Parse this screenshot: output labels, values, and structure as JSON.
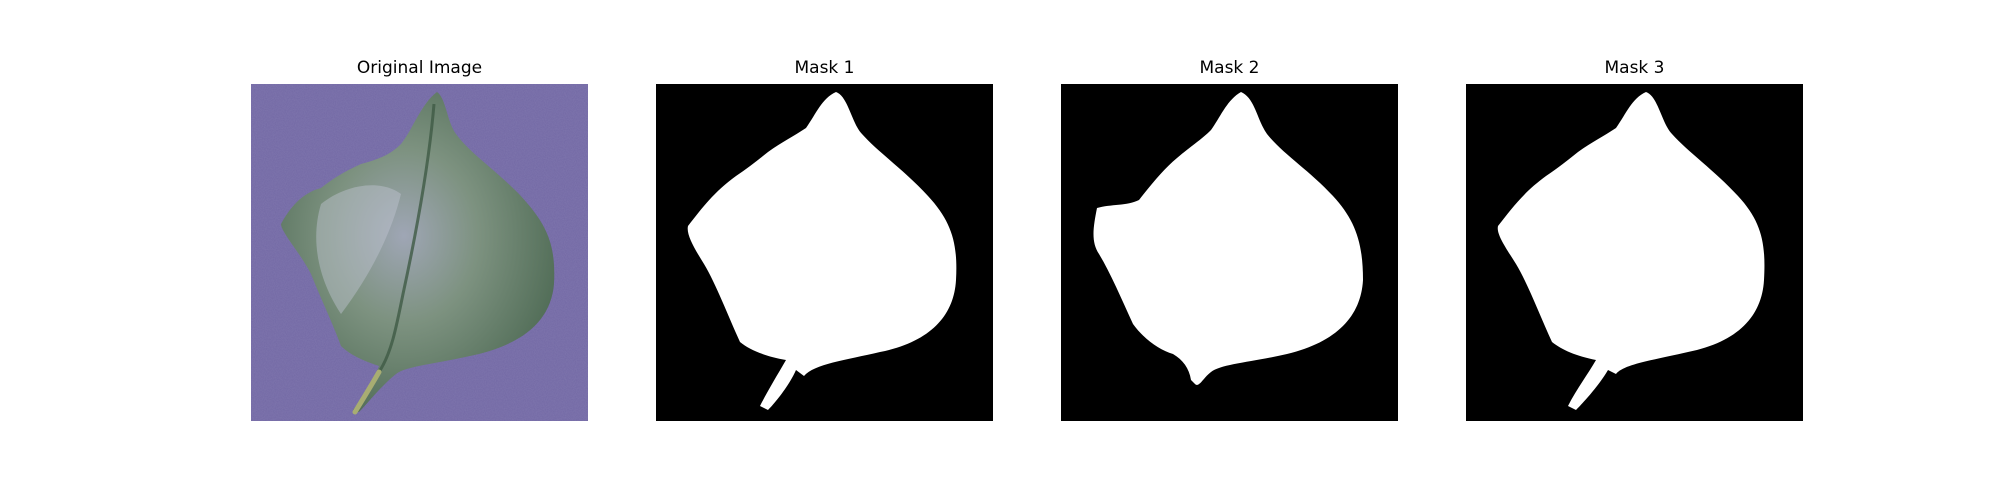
{
  "figure": {
    "panels": [
      {
        "title": "Original Image",
        "kind": "photo",
        "subject": "leaf"
      },
      {
        "title": "Mask 1",
        "kind": "mask"
      },
      {
        "title": "Mask 2",
        "kind": "mask"
      },
      {
        "title": "Mask 3",
        "kind": "mask"
      }
    ]
  },
  "colors": {
    "background": "#7268a4",
    "leaf": "#5f7a62",
    "leaf_highlight": "#b5b9c8",
    "stem": "#9aa26a",
    "mask_background": "#000000",
    "mask_foreground": "#ffffff"
  }
}
